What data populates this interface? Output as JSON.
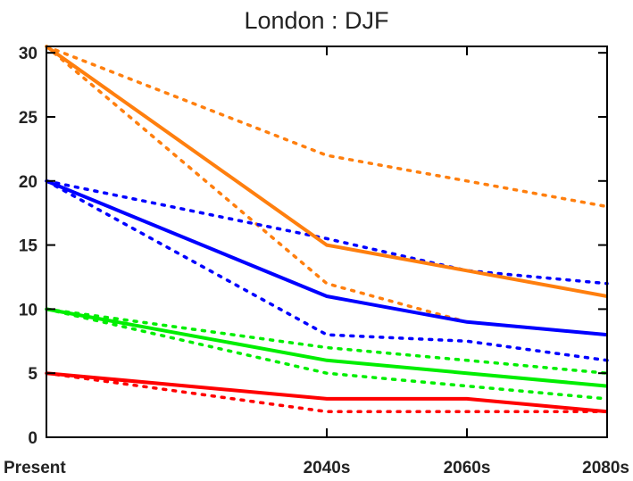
{
  "chart_data": {
    "type": "line",
    "title": "London : DJF",
    "xlabel": "",
    "ylabel": "",
    "categories": [
      "Present",
      "2040s",
      "2060s",
      "2080s"
    ],
    "x": [
      0,
      40,
      60,
      80
    ],
    "ylim": [
      0,
      30.5
    ],
    "yticks": [
      0,
      5,
      10,
      15,
      20,
      25,
      30
    ],
    "grid": false,
    "series": [
      {
        "color": "#ff7f0e",
        "style": "solid",
        "values": [
          30.5,
          15,
          13,
          11
        ]
      },
      {
        "color": "#ff7f0e",
        "style": "dotted",
        "values": [
          30.5,
          22,
          20,
          18
        ]
      },
      {
        "color": "#ff7f0e",
        "style": "dotted",
        "values": [
          30.5,
          12,
          9,
          8
        ]
      },
      {
        "color": "#0000ff",
        "style": "solid",
        "values": [
          20,
          11,
          9,
          8
        ]
      },
      {
        "color": "#0000ff",
        "style": "dotted",
        "values": [
          20,
          15.5,
          13,
          12
        ]
      },
      {
        "color": "#0000ff",
        "style": "dotted",
        "values": [
          20,
          8,
          7.5,
          6
        ]
      },
      {
        "color": "#00ee00",
        "style": "solid",
        "values": [
          10,
          6,
          5,
          4
        ]
      },
      {
        "color": "#00ee00",
        "style": "dotted",
        "values": [
          10,
          7,
          6,
          5
        ]
      },
      {
        "color": "#00ee00",
        "style": "dotted",
        "values": [
          10,
          5,
          4,
          3
        ]
      },
      {
        "color": "#ff0000",
        "style": "solid",
        "values": [
          5,
          3,
          3,
          2
        ]
      },
      {
        "color": "#ff0000",
        "style": "dotted",
        "values": [
          5,
          2,
          2,
          2
        ]
      }
    ]
  }
}
